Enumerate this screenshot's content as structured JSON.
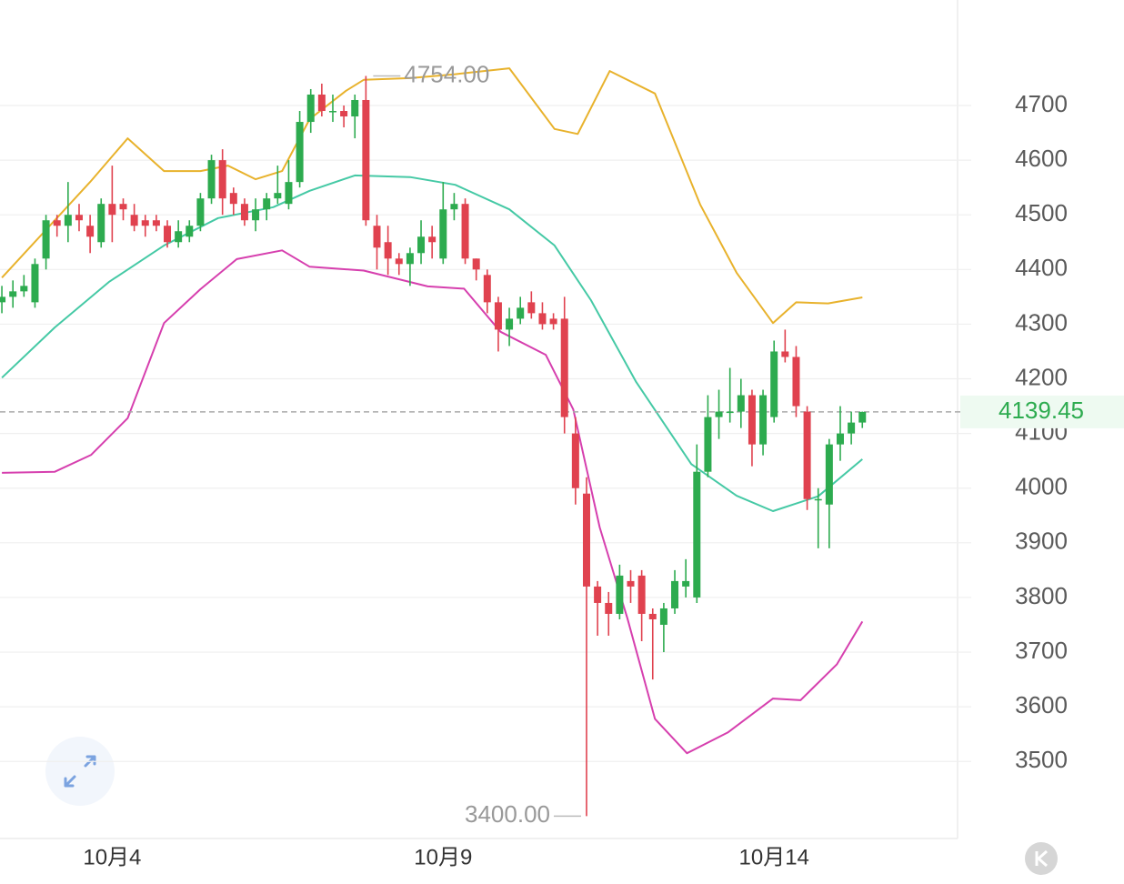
{
  "chart_data": {
    "type": "candlestick",
    "up_color": "#2dab4f",
    "down_color": "#e0424f",
    "xlim": [
      -0.17,
      86.8
    ],
    "ylim": [
      3359,
      4893
    ],
    "yticks": [
      3500,
      3600,
      3700,
      3800,
      3900,
      4000,
      4100,
      4200,
      4300,
      4400,
      4500,
      4600,
      4700
    ],
    "xticks": [
      {
        "value": 10,
        "label": "10月4"
      },
      {
        "value": 40,
        "label": "10月9"
      },
      {
        "value": 70,
        "label": "10月14"
      }
    ],
    "grid": true,
    "x": [
      0,
      1,
      2,
      3,
      4,
      5,
      6,
      7,
      8,
      9,
      10,
      11,
      12,
      13,
      14,
      15,
      16,
      17,
      18,
      19,
      20,
      21,
      22,
      23,
      24,
      25,
      26,
      27,
      28,
      29,
      30,
      31,
      32,
      33,
      34,
      35,
      36,
      37,
      38,
      39,
      40,
      41,
      42,
      43,
      44,
      45,
      46,
      47,
      48,
      49,
      50,
      51,
      52,
      53,
      54,
      55,
      56,
      57,
      58,
      59,
      60,
      61,
      62,
      63,
      64,
      65,
      66,
      67,
      68,
      69,
      70,
      71,
      72,
      73,
      74,
      75,
      76,
      77,
      78
    ],
    "open": [
      4340,
      4350,
      4360,
      4340,
      4420,
      4490,
      4480,
      4500,
      4480,
      4450,
      4520,
      4520,
      4500,
      4490,
      4490,
      4480,
      4450,
      4460,
      4480,
      4530,
      4600,
      4540,
      4520,
      4490,
      4510,
      4530,
      4520,
      4560,
      4670,
      4720,
      4690,
      4690,
      4680,
      4710,
      4480,
      4450,
      4420,
      4410,
      4430,
      4460,
      4420,
      4510,
      4520,
      4420,
      4390,
      4340,
      4290,
      4310,
      4340,
      4320,
      4310,
      4310,
      4100,
      3990,
      3820,
      3790,
      3770,
      3830,
      3840,
      3770,
      3750,
      3780,
      3820,
      3800,
      4030,
      4130,
      4140,
      4140,
      4170,
      4080,
      4130,
      4250,
      4240,
      4140,
      3980,
      3970,
      4080,
      4100,
      4120
    ],
    "high": [
      4370,
      4380,
      4390,
      4420,
      4500,
      4500,
      4560,
      4520,
      4500,
      4530,
      4590,
      4530,
      4520,
      4500,
      4500,
      4490,
      4490,
      4490,
      4540,
      4610,
      4620,
      4550,
      4530,
      4530,
      4540,
      4590,
      4600,
      4690,
      4730,
      4740,
      4720,
      4700,
      4720,
      4754,
      4500,
      4480,
      4430,
      4440,
      4490,
      4480,
      4560,
      4540,
      4530,
      4420,
      4400,
      4350,
      4330,
      4350,
      4360,
      4340,
      4320,
      4350,
      4130,
      4020,
      3830,
      3810,
      3860,
      3850,
      3850,
      3780,
      3790,
      3850,
      3870,
      4080,
      4170,
      4180,
      4220,
      4200,
      4180,
      4180,
      4270,
      4290,
      4260,
      4150,
      4000,
      4090,
      4150,
      4140,
      4140
    ],
    "low": [
      4320,
      4330,
      4350,
      4330,
      4400,
      4460,
      4450,
      4470,
      4430,
      4440,
      4450,
      4490,
      4470,
      4460,
      4470,
      4440,
      4440,
      4450,
      4470,
      4520,
      4500,
      4500,
      4480,
      4470,
      4490,
      4520,
      4510,
      4550,
      4650,
      4680,
      4670,
      4660,
      4640,
      4480,
      4400,
      4390,
      4390,
      4370,
      4410,
      4420,
      4410,
      4490,
      4410,
      4380,
      4320,
      4250,
      4260,
      4300,
      4310,
      4290,
      4290,
      4100,
      3970,
      3400,
      3730,
      3730,
      3760,
      3790,
      3720,
      3650,
      3700,
      3770,
      3800,
      3790,
      4020,
      4090,
      4120,
      4110,
      4040,
      4060,
      4120,
      4230,
      4130,
      3960,
      3890,
      3890,
      4050,
      4080,
      4110
    ],
    "close": [
      4350,
      4360,
      4370,
      4410,
      4490,
      4480,
      4500,
      4490,
      4460,
      4520,
      4500,
      4510,
      4480,
      4480,
      4480,
      4450,
      4470,
      4480,
      4530,
      4600,
      4530,
      4520,
      4490,
      4510,
      4530,
      4540,
      4560,
      4670,
      4720,
      4690,
      4690,
      4680,
      4710,
      4490,
      4440,
      4420,
      4410,
      4430,
      4460,
      4450,
      4510,
      4520,
      4420,
      4400,
      4340,
      4290,
      4310,
      4330,
      4320,
      4300,
      4300,
      4130,
      4000,
      3820,
      3790,
      3770,
      3840,
      3820,
      3770,
      3760,
      3780,
      3830,
      3830,
      4030,
      4130,
      4140,
      4140,
      4170,
      4080,
      4170,
      4250,
      4240,
      4150,
      3980,
      3980,
      4080,
      4100,
      4120,
      4139.45
    ],
    "overlays": [
      {
        "color": "#e8b22c",
        "x": [
          0,
          8,
          11.4,
          14.7,
          18,
          20.5,
          23,
          25.4,
          27.9,
          31.2,
          32.8,
          37,
          41,
          46,
          50.1,
          52.2,
          55.1,
          59.2,
          63.3,
          66.6,
          69.9,
          72,
          74.9,
          78
        ],
        "values": [
          4385,
          4560,
          4640,
          4580,
          4580,
          4590,
          4565,
          4580,
          4675,
          4727,
          4747,
          4750,
          4757,
          4768,
          4657,
          4648,
          4763,
          4722,
          4519,
          4394,
          4302,
          4340,
          4338,
          4349
        ]
      },
      {
        "color": "#45c9a5",
        "x": [
          0,
          4.8,
          9.7,
          14.7,
          19.6,
          24.6,
          27.9,
          32,
          37,
          41.1,
          46,
          50.1,
          53.4,
          57.5,
          62.5,
          66.6,
          69.9,
          74,
          78
        ],
        "values": [
          4202,
          4294,
          4377,
          4444,
          4494,
          4514,
          4544,
          4572,
          4569,
          4555,
          4510,
          4444,
          4344,
          4194,
          4044,
          3986,
          3958,
          3985,
          4053
        ]
      },
      {
        "color": "#d63fae",
        "x": [
          0,
          4.8,
          8.1,
          11.4,
          14.7,
          18,
          21.3,
          25.4,
          27.9,
          32.8,
          38.6,
          41.9,
          45.2,
          49.3,
          51.8,
          54.2,
          56.7,
          59.2,
          62.1,
          65.8,
          69.9,
          72.4,
          75.7,
          78
        ],
        "values": [
          4028,
          4030,
          4061,
          4128,
          4302,
          4364,
          4419,
          4435,
          4405,
          4398,
          4369,
          4365,
          4286,
          4244,
          4144,
          3928,
          3762,
          3578,
          3515,
          3553,
          3615,
          3612,
          3678,
          3756
        ]
      }
    ],
    "annotations": [
      {
        "x": 33,
        "value": 4754,
        "label": "4754.00"
      },
      {
        "x": 53,
        "value": 3400,
        "label": "3400.00"
      }
    ],
    "last_price": 4139.45
  }
}
